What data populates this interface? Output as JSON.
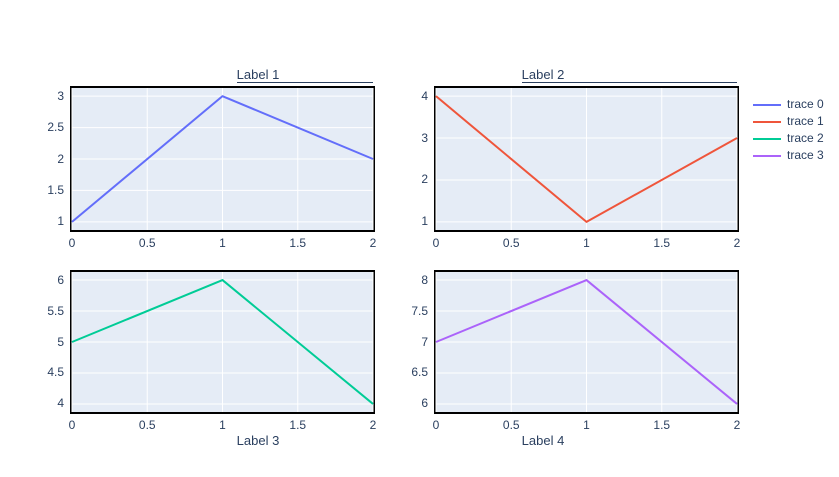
{
  "figure": {
    "background_color": "#ffffff",
    "plot_bgcolor": "#e5ecf6",
    "grid_color": "#ffffff",
    "border_color": "#000000",
    "font_color": "#2a3f5f"
  },
  "legend": {
    "items": [
      {
        "label": "trace 0",
        "color": "#636EFA"
      },
      {
        "label": "trace 1",
        "color": "#EF553B"
      },
      {
        "label": "trace 2",
        "color": "#00CC96"
      },
      {
        "label": "trace 3",
        "color": "#AB63FA"
      }
    ]
  },
  "chart_data": [
    {
      "type": "line",
      "name": "trace 0",
      "color": "#636EFA",
      "title": "Label 1",
      "xlabel": null,
      "x": [
        0,
        1,
        2
      ],
      "y": [
        1,
        3,
        2
      ],
      "xrange": [
        0,
        2
      ],
      "yrange": [
        1,
        3
      ],
      "xticks": [
        "0",
        "0.5",
        "1",
        "1.5",
        "2"
      ],
      "xtick_values": [
        0,
        0.5,
        1,
        1.5,
        2
      ],
      "yticks": [
        "1",
        "1.5",
        "2",
        "2.5",
        "3"
      ],
      "ytick_values": [
        1,
        1.5,
        2,
        2.5,
        3
      ],
      "grid": true,
      "legend_position": "right"
    },
    {
      "type": "line",
      "name": "trace 1",
      "color": "#EF553B",
      "title": "Label 2",
      "xlabel": null,
      "x": [
        0,
        1,
        2
      ],
      "y": [
        4,
        1,
        3
      ],
      "xrange": [
        0,
        2
      ],
      "yrange": [
        1,
        4
      ],
      "xticks": [
        "0",
        "0.5",
        "1",
        "1.5",
        "2"
      ],
      "xtick_values": [
        0,
        0.5,
        1,
        1.5,
        2
      ],
      "yticks": [
        "1",
        "2",
        "3",
        "4"
      ],
      "ytick_values": [
        1,
        2,
        3,
        4
      ],
      "grid": true,
      "legend_position": "right"
    },
    {
      "type": "line",
      "name": "trace 2",
      "color": "#00CC96",
      "title": null,
      "xlabel": "Label 3",
      "x": [
        0,
        1,
        2
      ],
      "y": [
        5,
        6,
        4
      ],
      "xrange": [
        0,
        2
      ],
      "yrange": [
        4,
        6
      ],
      "xticks": [
        "0",
        "0.5",
        "1",
        "1.5",
        "2"
      ],
      "xtick_values": [
        0,
        0.5,
        1,
        1.5,
        2
      ],
      "yticks": [
        "4",
        "4.5",
        "5",
        "5.5",
        "6"
      ],
      "ytick_values": [
        4,
        4.5,
        5,
        5.5,
        6
      ],
      "grid": true,
      "legend_position": "right"
    },
    {
      "type": "line",
      "name": "trace 3",
      "color": "#AB63FA",
      "title": null,
      "xlabel": "Label 4",
      "x": [
        0,
        1,
        2
      ],
      "y": [
        7,
        8,
        6
      ],
      "xrange": [
        0,
        2
      ],
      "yrange": [
        6,
        8
      ],
      "xticks": [
        "0",
        "0.5",
        "1",
        "1.5",
        "2"
      ],
      "xtick_values": [
        0,
        0.5,
        1,
        1.5,
        2
      ],
      "yticks": [
        "6",
        "6.5",
        "7",
        "7.5",
        "8"
      ],
      "ytick_values": [
        6,
        6.5,
        7,
        7.5,
        8
      ],
      "grid": true,
      "legend_position": "right"
    }
  ]
}
